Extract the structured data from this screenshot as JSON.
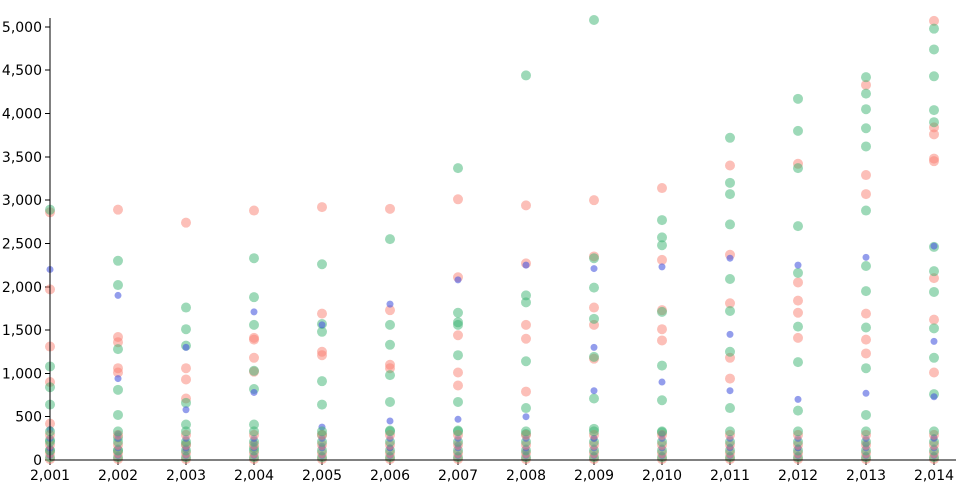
{
  "chart_data": {
    "type": "scatter",
    "title": "",
    "xlabel": "",
    "ylabel": "",
    "x_ticks": [
      "2,001",
      "2,002",
      "2,003",
      "2,004",
      "2,005",
      "2,006",
      "2,007",
      "2,008",
      "2,009",
      "2,010",
      "2,011",
      "2,012",
      "2,013",
      "2,014"
    ],
    "y_ticks": [
      "0",
      "500",
      "1,000",
      "1,500",
      "2,000",
      "2,500",
      "3,000",
      "3,500",
      "4,000",
      "4,500",
      "5,000"
    ],
    "xlim": [
      2001,
      2014
    ],
    "ylim": [
      0,
      5080
    ],
    "grid": false,
    "legend": "none",
    "series": [
      {
        "color": "#fa8072",
        "points": [
          [
            2001,
            2860
          ],
          [
            2001,
            1970
          ],
          [
            2001,
            1310
          ],
          [
            2001,
            900
          ],
          [
            2001,
            420
          ],
          [
            2002,
            2890
          ],
          [
            2002,
            1420
          ],
          [
            2002,
            1360
          ],
          [
            2002,
            1060
          ],
          [
            2002,
            1010
          ],
          [
            2003,
            2740
          ],
          [
            2003,
            1060
          ],
          [
            2003,
            930
          ],
          [
            2003,
            710
          ],
          [
            2004,
            2880
          ],
          [
            2004,
            1410
          ],
          [
            2004,
            1390
          ],
          [
            2004,
            1180
          ],
          [
            2004,
            1020
          ],
          [
            2005,
            2920
          ],
          [
            2005,
            1690
          ],
          [
            2005,
            1250
          ],
          [
            2005,
            1210
          ],
          [
            2006,
            2900
          ],
          [
            2006,
            1730
          ],
          [
            2006,
            1100
          ],
          [
            2006,
            1060
          ],
          [
            2007,
            3010
          ],
          [
            2007,
            2110
          ],
          [
            2007,
            1440
          ],
          [
            2007,
            1010
          ],
          [
            2007,
            860
          ],
          [
            2008,
            2940
          ],
          [
            2008,
            2270
          ],
          [
            2008,
            1560
          ],
          [
            2008,
            1400
          ],
          [
            2008,
            790
          ],
          [
            2009,
            3000
          ],
          [
            2009,
            2350
          ],
          [
            2009,
            1760
          ],
          [
            2009,
            1560
          ],
          [
            2009,
            1170
          ],
          [
            2010,
            3140
          ],
          [
            2010,
            2310
          ],
          [
            2010,
            1730
          ],
          [
            2010,
            1510
          ],
          [
            2010,
            1380
          ],
          [
            2011,
            3400
          ],
          [
            2011,
            2370
          ],
          [
            2011,
            1810
          ],
          [
            2011,
            1180
          ],
          [
            2011,
            940
          ],
          [
            2012,
            3420
          ],
          [
            2012,
            2050
          ],
          [
            2012,
            1840
          ],
          [
            2012,
            1700
          ],
          [
            2012,
            1410
          ],
          [
            2013,
            4330
          ],
          [
            2013,
            3290
          ],
          [
            2013,
            3070
          ],
          [
            2013,
            1690
          ],
          [
            2013,
            1390
          ],
          [
            2013,
            1230
          ],
          [
            2014,
            5070
          ],
          [
            2014,
            3840
          ],
          [
            2014,
            3760
          ],
          [
            2014,
            3480
          ],
          [
            2014,
            3450
          ],
          [
            2014,
            2100
          ],
          [
            2014,
            1620
          ],
          [
            2014,
            1010
          ]
        ]
      },
      {
        "color": "#3cb371",
        "points": [
          [
            2001,
            2890
          ],
          [
            2001,
            1080
          ],
          [
            2001,
            840
          ],
          [
            2001,
            640
          ],
          [
            2001,
            230
          ],
          [
            2001,
            110
          ],
          [
            2002,
            2300
          ],
          [
            2002,
            2020
          ],
          [
            2002,
            1280
          ],
          [
            2002,
            810
          ],
          [
            2002,
            520
          ],
          [
            2002,
            260
          ],
          [
            2002,
            110
          ],
          [
            2003,
            1760
          ],
          [
            2003,
            1510
          ],
          [
            2003,
            1320
          ],
          [
            2003,
            660
          ],
          [
            2003,
            410
          ],
          [
            2003,
            180
          ],
          [
            2004,
            2330
          ],
          [
            2004,
            1880
          ],
          [
            2004,
            1560
          ],
          [
            2004,
            1030
          ],
          [
            2004,
            820
          ],
          [
            2004,
            410
          ],
          [
            2004,
            140
          ],
          [
            2005,
            2260
          ],
          [
            2005,
            1570
          ],
          [
            2005,
            1480
          ],
          [
            2005,
            910
          ],
          [
            2005,
            640
          ],
          [
            2005,
            290
          ],
          [
            2006,
            2550
          ],
          [
            2006,
            1560
          ],
          [
            2006,
            1330
          ],
          [
            2006,
            980
          ],
          [
            2006,
            670
          ],
          [
            2006,
            340
          ],
          [
            2007,
            3370
          ],
          [
            2007,
            1700
          ],
          [
            2007,
            1590
          ],
          [
            2007,
            1560
          ],
          [
            2007,
            1210
          ],
          [
            2007,
            670
          ],
          [
            2007,
            340
          ],
          [
            2008,
            4440
          ],
          [
            2008,
            1900
          ],
          [
            2008,
            1820
          ],
          [
            2008,
            1140
          ],
          [
            2008,
            600
          ],
          [
            2008,
            300
          ],
          [
            2009,
            5080
          ],
          [
            2009,
            2330
          ],
          [
            2009,
            1990
          ],
          [
            2009,
            1630
          ],
          [
            2009,
            1190
          ],
          [
            2009,
            710
          ],
          [
            2009,
            360
          ],
          [
            2010,
            2770
          ],
          [
            2010,
            2570
          ],
          [
            2010,
            2480
          ],
          [
            2010,
            1710
          ],
          [
            2010,
            1090
          ],
          [
            2010,
            690
          ],
          [
            2010,
            320
          ],
          [
            2011,
            3720
          ],
          [
            2011,
            3200
          ],
          [
            2011,
            3070
          ],
          [
            2011,
            2720
          ],
          [
            2011,
            2090
          ],
          [
            2011,
            1720
          ],
          [
            2011,
            1250
          ],
          [
            2011,
            600
          ],
          [
            2012,
            4170
          ],
          [
            2012,
            3800
          ],
          [
            2012,
            3370
          ],
          [
            2012,
            2700
          ],
          [
            2012,
            2160
          ],
          [
            2012,
            1540
          ],
          [
            2012,
            1130
          ],
          [
            2012,
            570
          ],
          [
            2013,
            4420
          ],
          [
            2013,
            4230
          ],
          [
            2013,
            4050
          ],
          [
            2013,
            3830
          ],
          [
            2013,
            3620
          ],
          [
            2013,
            2880
          ],
          [
            2013,
            2240
          ],
          [
            2013,
            1950
          ],
          [
            2013,
            1530
          ],
          [
            2013,
            1060
          ],
          [
            2013,
            520
          ],
          [
            2014,
            4980
          ],
          [
            2014,
            4740
          ],
          [
            2014,
            4430
          ],
          [
            2014,
            4040
          ],
          [
            2014,
            3900
          ],
          [
            2014,
            2460
          ],
          [
            2014,
            2180
          ],
          [
            2014,
            1940
          ],
          [
            2014,
            1520
          ],
          [
            2014,
            1180
          ],
          [
            2014,
            760
          ]
        ]
      },
      {
        "color": "#4b5be0",
        "points": [
          [
            2001,
            2200
          ],
          [
            2001,
            350
          ],
          [
            2001,
            120
          ],
          [
            2002,
            1900
          ],
          [
            2002,
            940
          ],
          [
            2002,
            300
          ],
          [
            2003,
            1300
          ],
          [
            2003,
            580
          ],
          [
            2003,
            120
          ],
          [
            2004,
            1710
          ],
          [
            2004,
            780
          ],
          [
            2004,
            200
          ],
          [
            2005,
            1560
          ],
          [
            2005,
            380
          ],
          [
            2005,
            160
          ],
          [
            2006,
            1800
          ],
          [
            2006,
            450
          ],
          [
            2006,
            140
          ],
          [
            2007,
            2080
          ],
          [
            2007,
            470
          ],
          [
            2007,
            170
          ],
          [
            2008,
            2250
          ],
          [
            2008,
            500
          ],
          [
            2008,
            100
          ],
          [
            2009,
            2210
          ],
          [
            2009,
            1300
          ],
          [
            2009,
            800
          ],
          [
            2009,
            250
          ],
          [
            2010,
            2230
          ],
          [
            2010,
            900
          ],
          [
            2010,
            300
          ],
          [
            2011,
            2330
          ],
          [
            2011,
            1450
          ],
          [
            2011,
            800
          ],
          [
            2011,
            150
          ],
          [
            2012,
            2250
          ],
          [
            2012,
            700
          ],
          [
            2012,
            140
          ],
          [
            2013,
            2340
          ],
          [
            2013,
            770
          ],
          [
            2013,
            180
          ],
          [
            2014,
            2470
          ],
          [
            2014,
            1370
          ],
          [
            2014,
            730
          ],
          [
            2014,
            260
          ]
        ]
      }
    ]
  }
}
